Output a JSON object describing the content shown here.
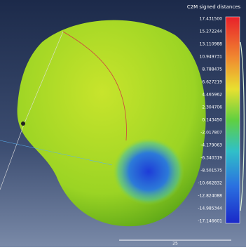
{
  "colorbar": {
    "title": "C2M signed distances",
    "labels": [
      "17.431500",
      "15.272244",
      "13.110988",
      "10.949731",
      "8.788475",
      "6.627219",
      "4.465962",
      "2.304706",
      "0.143450",
      "-2.017807",
      "-4.179063",
      "-6.340319",
      "-8.501575",
      "-10.662832",
      "-12.824088",
      "-14.985344",
      "-17.146601"
    ]
  },
  "scale_bar": {
    "label": "25"
  }
}
